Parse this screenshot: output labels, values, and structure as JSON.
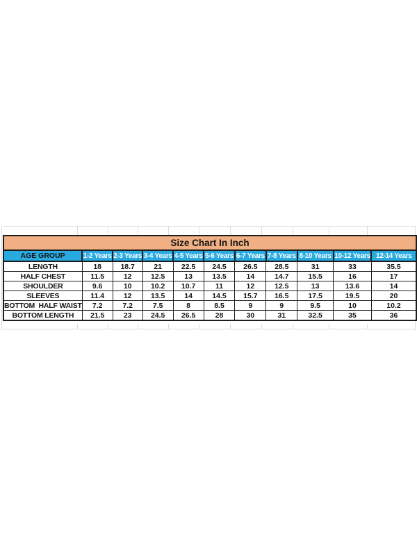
{
  "colors": {
    "title_bg": "#F1AF84",
    "header_bg": "#29ABE2",
    "header_text": "#FFFFFF",
    "text": "#151515",
    "border": "#1C1C1C",
    "grid_line": "#DCDCDC"
  },
  "chart_data": {
    "type": "table",
    "title": "Size Chart In Inch",
    "columns": [
      "AGE GROUP",
      "1-2 Years",
      "2-3 Years",
      "3-4 Years",
      "4-5 Years",
      "5-6 Years",
      "6-7 Years",
      "7-8 Years",
      "8-10 Years",
      "10-12 Years",
      "12-14 Years"
    ],
    "rows": [
      {
        "label": "LENGTH",
        "values": [
          18,
          18.7,
          21,
          22.5,
          24.5,
          26.5,
          28.5,
          31,
          33,
          35.5
        ]
      },
      {
        "label": "HALF CHEST",
        "values": [
          11.5,
          12,
          12.5,
          13,
          13.5,
          14,
          14.7,
          15.5,
          16,
          17
        ]
      },
      {
        "label": "SHOULDER",
        "values": [
          9.6,
          10,
          10.2,
          10.7,
          11,
          12,
          12.5,
          13,
          13.6,
          14
        ]
      },
      {
        "label": "SLEEVES",
        "values": [
          11.4,
          12,
          13.5,
          14,
          14.5,
          15.7,
          16.5,
          17.5,
          19.5,
          20
        ]
      },
      {
        "label": "BOTTOM  HALF WAIST",
        "values": [
          7.2,
          7.2,
          7.5,
          8,
          8.5,
          9,
          9,
          9.5,
          10,
          10.2
        ]
      },
      {
        "label": "BOTTOM LENGTH",
        "values": [
          21.5,
          23,
          24.5,
          26.5,
          28,
          30,
          31,
          32.5,
          35,
          36
        ]
      }
    ]
  }
}
